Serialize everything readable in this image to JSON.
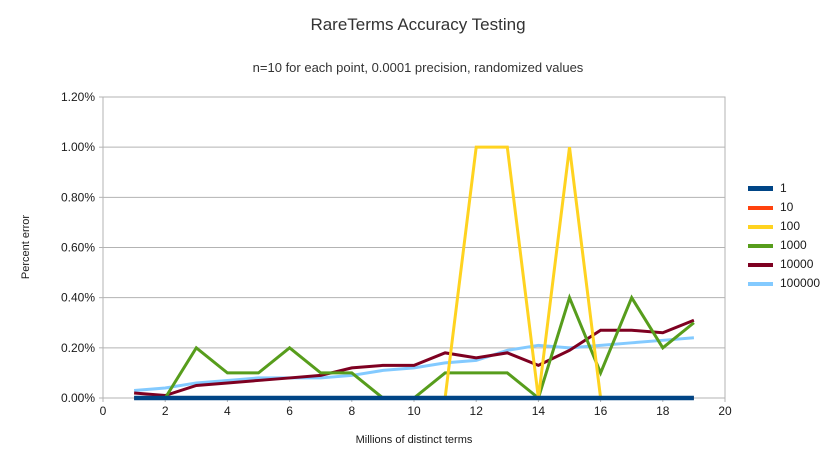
{
  "chart_data": {
    "type": "line",
    "title": "RareTerms Accuracy Testing",
    "subtitle": "n=10 for each point, 0.0001 precision, randomized values",
    "xlabel": "Millions of distinct terms",
    "ylabel": "Percent error",
    "grid": true,
    "grid_color": "#b3b3b3",
    "legend_position": "right",
    "xlim": [
      0,
      20
    ],
    "ylim_percent": [
      0,
      1.2
    ],
    "xticks": [
      0,
      2,
      4,
      6,
      8,
      10,
      12,
      14,
      16,
      18,
      20
    ],
    "yticks_percent": [
      0,
      0.2,
      0.4,
      0.6,
      0.8,
      1.0,
      1.2
    ],
    "ytick_labels": [
      "0.00%",
      "0.20%",
      "0.40%",
      "0.60%",
      "0.80%",
      "1.00%",
      "1.20%"
    ],
    "x": [
      1,
      2,
      3,
      4,
      5,
      6,
      7,
      8,
      9,
      10,
      11,
      12,
      13,
      14,
      15,
      16,
      17,
      18,
      19
    ],
    "series": [
      {
        "name": "1",
        "color": "#004586",
        "values": [
          0,
          0,
          0,
          0,
          0,
          0,
          0,
          0,
          0,
          0,
          0,
          0,
          0,
          0,
          0,
          0,
          0,
          0,
          0
        ]
      },
      {
        "name": "10",
        "color": "#FF420E",
        "values": [
          0,
          0,
          0,
          0,
          0,
          0,
          0,
          0,
          0,
          0,
          0,
          0,
          0,
          0,
          0,
          0,
          0,
          0,
          0
        ]
      },
      {
        "name": "100",
        "color": "#FFD320",
        "values": [
          0,
          0,
          0,
          0,
          0,
          0,
          0,
          0,
          0,
          0,
          0,
          1.0,
          1.0,
          0,
          1.0,
          0,
          0,
          0,
          0
        ]
      },
      {
        "name": "1000",
        "color": "#579D1C",
        "values": [
          0,
          0,
          0.2,
          0.1,
          0.1,
          0.2,
          0.1,
          0.1,
          0,
          0,
          0.1,
          0.1,
          0.1,
          0,
          0.4,
          0.1,
          0.4,
          0.2,
          0.3
        ]
      },
      {
        "name": "10000",
        "color": "#7E0021",
        "values": [
          0.02,
          0.01,
          0.05,
          0.06,
          0.07,
          0.08,
          0.09,
          0.12,
          0.13,
          0.13,
          0.18,
          0.16,
          0.18,
          0.13,
          0.19,
          0.27,
          0.27,
          0.26,
          0.31
        ]
      },
      {
        "name": "100000",
        "color": "#83CAFF",
        "values": [
          0.03,
          0.04,
          0.06,
          0.07,
          0.08,
          0.08,
          0.08,
          0.09,
          0.11,
          0.12,
          0.14,
          0.15,
          0.19,
          0.21,
          0.2,
          0.21,
          0.22,
          0.23,
          0.24
        ]
      }
    ]
  }
}
